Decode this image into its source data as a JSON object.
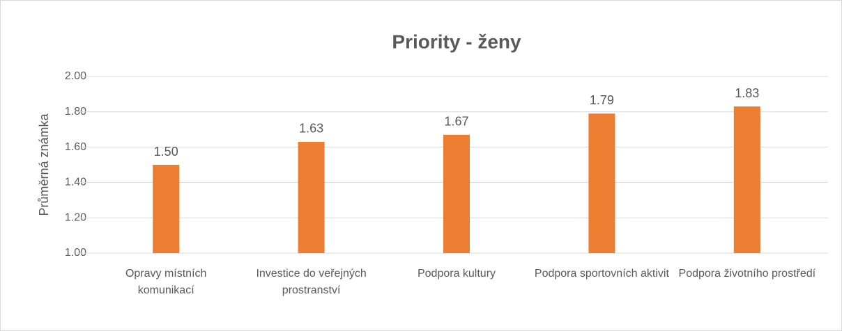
{
  "chart_data": {
    "type": "bar",
    "title": "Priority - ženy",
    "y_label": "Průměrná známka",
    "categories": [
      "Opravy místních komunikací",
      "Investice do veřejných prostranství",
      "Podpora kultury",
      "Podpora sportovních aktivit",
      "Podpora životního prostředí"
    ],
    "values": [
      1.5,
      1.63,
      1.67,
      1.79,
      1.83
    ],
    "value_labels": [
      "1.50",
      "1.63",
      "1.67",
      "1.79",
      "1.83"
    ],
    "color": "#ed7d31",
    "ylim": [
      1,
      2
    ],
    "yticks": [
      {
        "value": 1,
        "label": "1.00"
      },
      {
        "value": 1.2,
        "label": "1.20"
      },
      {
        "value": 1.4,
        "label": "1.40"
      },
      {
        "value": 1.6,
        "label": "1.60"
      },
      {
        "value": 1.8,
        "label": "1.80"
      },
      {
        "value": 2,
        "label": "2.00"
      }
    ],
    "grid": true
  }
}
